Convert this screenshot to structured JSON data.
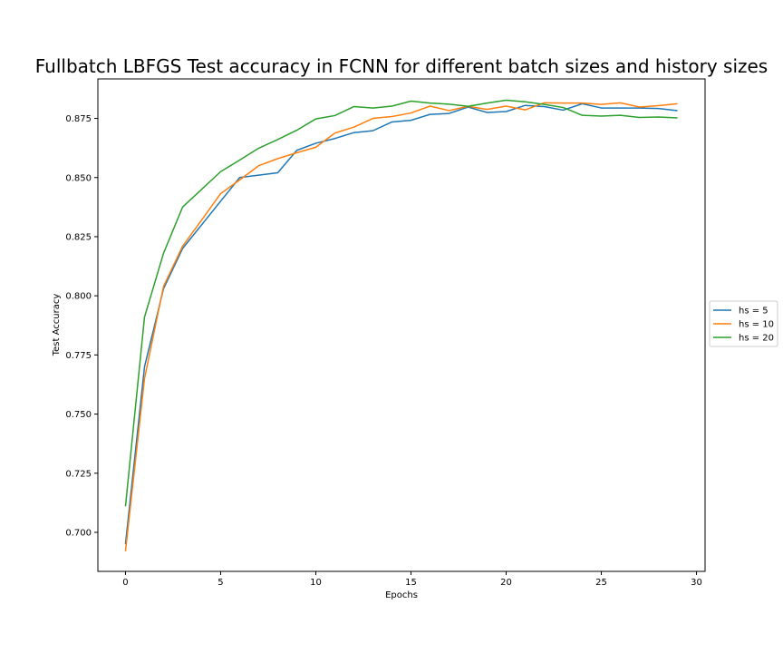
{
  "chart_data": {
    "type": "line",
    "title": "Fullbatch LBFGS Test accuracy in FCNN for different batch sizes and history sizes",
    "xlabel": "Epochs",
    "ylabel": "Test Accuracy",
    "xlim": [
      -1.45,
      30.45
    ],
    "ylim": [
      0.6835,
      0.8917
    ],
    "xticks": [
      0,
      5,
      10,
      15,
      20,
      25,
      30
    ],
    "xtick_labels": [
      "0",
      "5",
      "10",
      "15",
      "20",
      "25",
      "30"
    ],
    "yticks": [
      0.7,
      0.725,
      0.75,
      0.775,
      0.8,
      0.825,
      0.85,
      0.875
    ],
    "ytick_labels": [
      "0.700",
      "0.725",
      "0.750",
      "0.775",
      "0.800",
      "0.825",
      "0.850",
      "0.875"
    ],
    "grid": false,
    "legend_position": "outside-right-center",
    "x": [
      0,
      1,
      2,
      3,
      4,
      5,
      6,
      7,
      8,
      9,
      10,
      11,
      12,
      13,
      14,
      15,
      16,
      17,
      18,
      19,
      20,
      21,
      22,
      23,
      24,
      25,
      26,
      27,
      28,
      29
    ],
    "series": [
      {
        "name": "hs = 5",
        "color": "#1f77b4",
        "values": [
          0.695,
          0.77,
          0.803,
          0.82,
          0.83,
          0.84,
          0.85,
          0.851,
          0.852,
          0.8615,
          0.8645,
          0.8665,
          0.869,
          0.8698,
          0.8735,
          0.8742,
          0.8767,
          0.8771,
          0.8798,
          0.8775,
          0.8779,
          0.8805,
          0.88,
          0.8785,
          0.8812,
          0.8794,
          0.8794,
          0.8794,
          0.8792,
          0.8783
        ]
      },
      {
        "name": "hs = 10",
        "color": "#ff7f0e",
        "values": [
          0.692,
          0.765,
          0.804,
          0.821,
          0.832,
          0.8432,
          0.849,
          0.855,
          0.858,
          0.8605,
          0.8628,
          0.8688,
          0.8713,
          0.875,
          0.8758,
          0.8773,
          0.8802,
          0.8783,
          0.8801,
          0.8788,
          0.8802,
          0.8786,
          0.8816,
          0.8815,
          0.8815,
          0.8809,
          0.8816,
          0.8798,
          0.8804,
          0.8812
        ]
      },
      {
        "name": "hs = 20",
        "color": "#2ca02c",
        "values": [
          0.711,
          0.791,
          0.818,
          0.8375,
          0.845,
          0.8525,
          0.8574,
          0.8624,
          0.8661,
          0.87,
          0.8748,
          0.8762,
          0.88,
          0.8794,
          0.8802,
          0.8823,
          0.8815,
          0.881,
          0.8801,
          0.8815,
          0.8827,
          0.882,
          0.8809,
          0.8796,
          0.8763,
          0.876,
          0.8763,
          0.8754,
          0.8756,
          0.8752
        ]
      }
    ]
  }
}
